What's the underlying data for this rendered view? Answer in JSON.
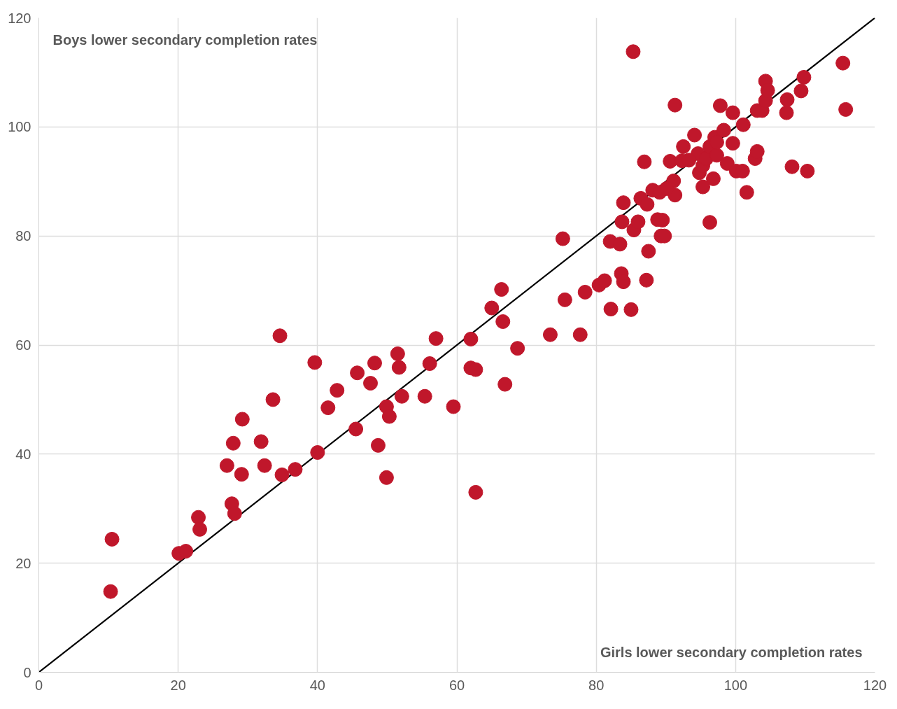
{
  "chart_data": {
    "type": "scatter",
    "xlabel": "Girls lower secondary completion rates",
    "ylabel": "Boys lower secondary completion rates",
    "xlim": [
      0,
      120
    ],
    "ylim": [
      0,
      120
    ],
    "xticks": [
      0,
      20,
      40,
      60,
      80,
      100,
      120
    ],
    "yticks": [
      0,
      20,
      40,
      60,
      80,
      100,
      120
    ],
    "grid": true,
    "marker": "circle",
    "series": [
      {
        "color": "#c0172b",
        "x": [
          10.3,
          10.5,
          20.1,
          21.1,
          22.9,
          23.1,
          27.0,
          27.7,
          28.1,
          27.9,
          29.2,
          29.1,
          31.9,
          32.4,
          33.6,
          34.6,
          34.9,
          36.8,
          39.6,
          40.0,
          41.5,
          42.8,
          45.5,
          45.7,
          47.6,
          48.2,
          48.7,
          49.9,
          50.3,
          49.9,
          51.5,
          51.7,
          52.1,
          55.4,
          56.1,
          57.0,
          59.5,
          62.0,
          62.0,
          62.7,
          62.7,
          65.0,
          66.4,
          66.6,
          66.9,
          68.7,
          73.4,
          75.2,
          75.5,
          77.7,
          78.4,
          80.4,
          81.2,
          82.0,
          82.1,
          83.4,
          83.6,
          83.9,
          83.7,
          83.9,
          85.0,
          87.2,
          87.5,
          86.9,
          85.3,
          85.4,
          86.0,
          86.4,
          87.3,
          88.1,
          88.8,
          89.1,
          89.3,
          89.8,
          89.5,
          90.6,
          91.1,
          91.3,
          90.1,
          91.3,
          92.5,
          92.3,
          94.1,
          94.6,
          94.8,
          95.3,
          96.3,
          96.8,
          95.3,
          95.8,
          96.3,
          97.0,
          97.8,
          97.3,
          98.3,
          98.8,
          99.6,
          99.6,
          100.1,
          101.0,
          101.1,
          101.6,
          102.8,
          103.1,
          103.1,
          103.8,
          104.3,
          104.3,
          104.6,
          107.4,
          107.3,
          108.1,
          109.4,
          109.8,
          110.3,
          115.4,
          115.8,
          93.3,
          97.3
        ],
        "values": [
          14.8,
          24.4,
          21.8,
          22.2,
          28.4,
          26.2,
          37.9,
          30.9,
          29.1,
          42.0,
          46.4,
          36.3,
          42.3,
          37.9,
          50.0,
          61.7,
          36.2,
          37.2,
          56.8,
          40.3,
          48.5,
          51.7,
          44.6,
          54.9,
          53.0,
          56.7,
          41.6,
          48.7,
          46.9,
          35.7,
          58.4,
          55.9,
          50.6,
          50.6,
          56.6,
          61.2,
          48.7,
          61.1,
          55.8,
          55.5,
          33.0,
          66.8,
          70.2,
          64.3,
          52.8,
          59.4,
          61.9,
          79.5,
          68.3,
          61.9,
          69.7,
          71.0,
          71.8,
          79.0,
          66.6,
          78.5,
          73.1,
          71.6,
          82.6,
          86.1,
          66.5,
          71.9,
          77.2,
          93.6,
          113.8,
          81.1,
          82.6,
          86.9,
          85.8,
          88.4,
          83.0,
          88.0,
          80.0,
          80.0,
          82.9,
          93.7,
          90.1,
          87.5,
          88.7,
          104.0,
          96.4,
          93.8,
          98.5,
          95.1,
          91.6,
          89.0,
          82.5,
          90.5,
          92.9,
          94.2,
          96.4,
          98.1,
          103.9,
          94.8,
          99.4,
          93.3,
          97.0,
          102.6,
          91.9,
          91.9,
          100.4,
          88.0,
          94.2,
          95.5,
          103.0,
          103.0,
          104.8,
          108.4,
          106.7,
          105.0,
          102.6,
          92.7,
          106.6,
          109.1,
          91.9,
          111.7,
          103.2,
          93.9,
          97.2
        ]
      },
      {
        "type": "line",
        "marker": "none",
        "color": "#000000",
        "x": [
          0,
          120
        ],
        "values": [
          0,
          120
        ]
      }
    ]
  }
}
